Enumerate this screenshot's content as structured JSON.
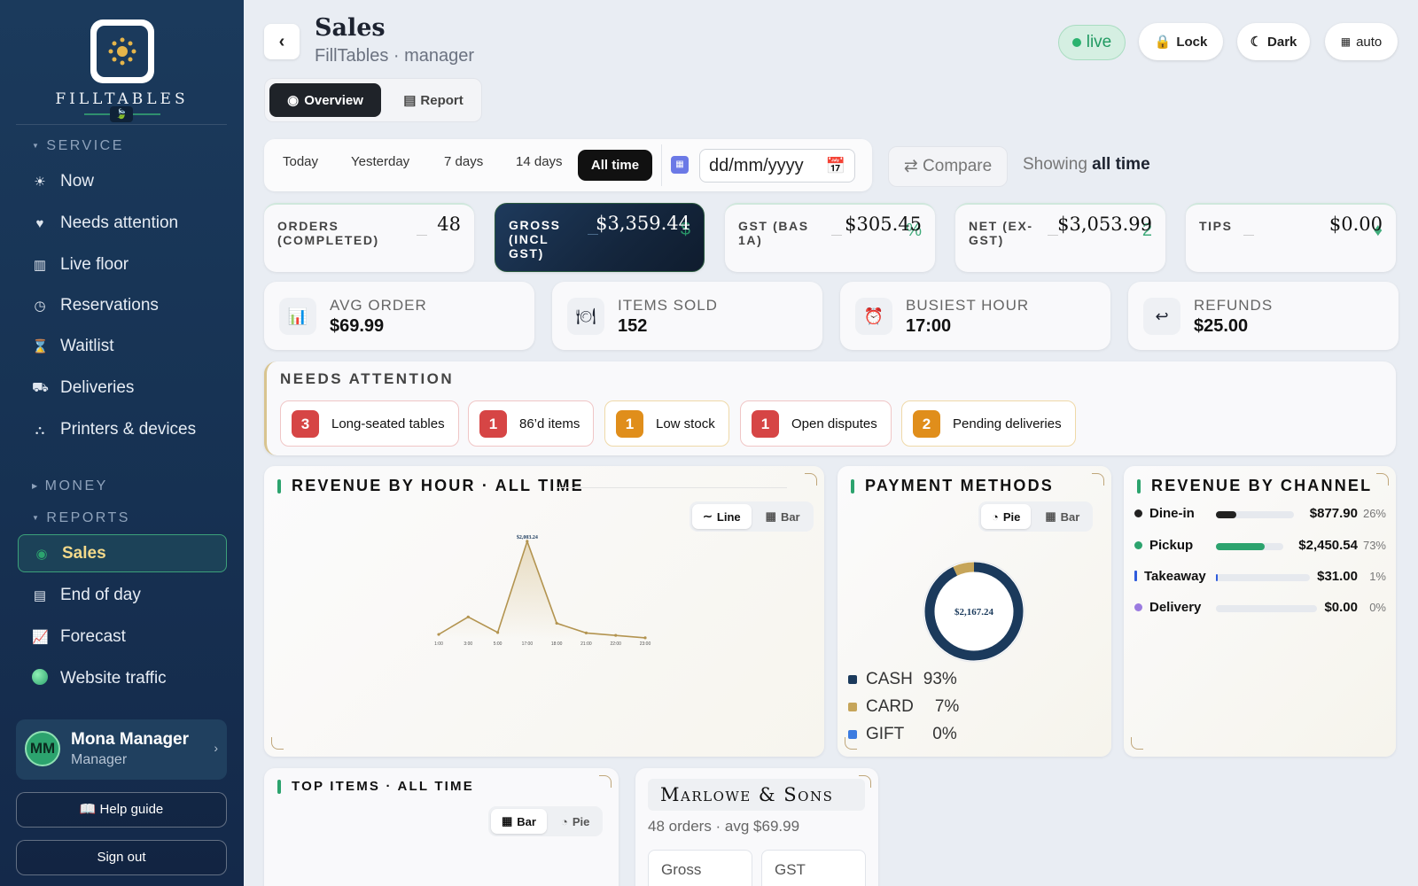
{
  "sidebar": {
    "brand": "FILLTABLES",
    "brand_badge": "🍃",
    "sections": {
      "service": "SERVICE",
      "money": "MONEY",
      "reports": "REPORTS"
    },
    "service_items": [
      {
        "label": "Now",
        "icon": "sun-icon"
      },
      {
        "label": "Needs attention",
        "icon": "heart-icon"
      },
      {
        "label": "Live floor",
        "icon": "floor-grid-icon"
      },
      {
        "label": "Reservations",
        "icon": "clock-icon"
      },
      {
        "label": "Waitlist",
        "icon": "hourglass-icon"
      },
      {
        "label": "Deliveries",
        "icon": "truck-icon"
      },
      {
        "label": "Printers & devices",
        "icon": "network-icon"
      }
    ],
    "report_items": [
      {
        "label": "Sales",
        "icon": "dot-icon",
        "active": true
      },
      {
        "label": "End of day",
        "icon": "list-icon"
      },
      {
        "label": "Forecast",
        "icon": "chart-up-icon"
      },
      {
        "label": "Website traffic",
        "icon": "globe-icon"
      }
    ],
    "user": {
      "initials": "MM",
      "name": "Mona Manager",
      "role": "Manager"
    },
    "help_label": "📖 Help guide",
    "signout_label": "Sign out"
  },
  "header": {
    "title": "Sales",
    "subtitle": "FillTables · manager",
    "back": "‹",
    "live_label": "live",
    "lock_label": "Lock",
    "dark_label": "Dark",
    "auto_label": "auto",
    "tabs": {
      "overview": "Overview",
      "report": "Report"
    }
  },
  "range": {
    "options": [
      "Today",
      "Yesterday",
      "7 days",
      "14 days"
    ],
    "active": "All time",
    "date_placeholder": "dd/mm/yyyy",
    "compare_label": "⇄ Compare",
    "showing_prefix": "Showing",
    "showing_value": "all time"
  },
  "kpis": [
    {
      "label": "ORDERS (COMPLETED)",
      "value": "48"
    },
    {
      "label": "GROSS (INCL GST)",
      "value": "$3,359.44",
      "glyph": "$"
    },
    {
      "label": "GST (BAS 1A)",
      "value": "$305.45",
      "glyph": "%"
    },
    {
      "label": "NET (EX-GST)",
      "value": "$3,053.99",
      "glyph": "2"
    },
    {
      "label": "TIPS",
      "value": "$0.00",
      "glyph": "♦"
    }
  ],
  "minis": [
    {
      "label": "AVG ORDER",
      "value": "$69.99",
      "icon": "bar-chart-icon",
      "glyph": "📊"
    },
    {
      "label": "ITEMS SOLD",
      "value": "152",
      "icon": "plate-icon",
      "glyph": "🍽"
    },
    {
      "label": "BUSIEST HOUR",
      "value": "17:00",
      "icon": "alarm-clock-icon",
      "glyph": "⏰"
    },
    {
      "label": "REFUNDS",
      "value": "$25.00",
      "icon": "return-arrow-icon",
      "glyph": "↩"
    }
  ],
  "attention": {
    "title": "NEEDS ATTENTION",
    "chips": [
      {
        "count": "3",
        "label": "Long-seated tables",
        "tone": "red"
      },
      {
        "count": "1",
        "label": "86’d items",
        "tone": "red"
      },
      {
        "count": "1",
        "label": "Low stock",
        "tone": "amber"
      },
      {
        "count": "1",
        "label": "Open disputes",
        "tone": "red"
      },
      {
        "count": "2",
        "label": "Pending deliveries",
        "tone": "amber"
      }
    ]
  },
  "revenue_by_hour": {
    "title": "REVENUE BY HOUR · ALL TIME",
    "toggle": {
      "line": "Line",
      "bar": "Bar"
    },
    "peak_label": "$2,003.24"
  },
  "payment_methods": {
    "title": "PAYMENT METHODS",
    "toggle": {
      "pie": "Pie",
      "bar": "Bar"
    },
    "center_label": "$2,167.24",
    "legend": [
      {
        "name": "CASH",
        "pct": "93%",
        "color": "#1b3a5c"
      },
      {
        "name": "CARD",
        "pct": "7%",
        "color": "#c6a55a"
      },
      {
        "name": "GIFT",
        "pct": "0%",
        "color": "#3b7be0"
      }
    ]
  },
  "revenue_by_channel": {
    "title": "REVENUE BY CHANNEL",
    "rows": [
      {
        "name": "Dine-in",
        "amount": "$877.90",
        "pct": "26%",
        "fraction": 0.26,
        "color": "#222222"
      },
      {
        "name": "Pickup",
        "amount": "$2,450.54",
        "pct": "73%",
        "fraction": 0.73,
        "color": "#2ca36e"
      },
      {
        "name": "Takeaway",
        "amount": "$31.00",
        "pct": "1%",
        "fraction": 0.01,
        "color": "#2e5bdc"
      },
      {
        "name": "Delivery",
        "amount": "$0.00",
        "pct": "0%",
        "fraction": 0.0,
        "color": "#9b7be0"
      }
    ]
  },
  "top_items": {
    "title": "TOP ITEMS · ALL TIME",
    "toggle": {
      "bar": "Bar",
      "pie": "Pie"
    }
  },
  "merchant": {
    "name": "Marlowe & Sons",
    "summary": "48 orders · avg $69.99",
    "boxes": [
      "Gross",
      "GST"
    ]
  },
  "chart_data": [
    {
      "type": "line",
      "title": "REVENUE BY HOUR · ALL TIME",
      "x": [
        "1:00",
        "3:00",
        "5:00",
        "17:00",
        "18:00",
        "21:00",
        "22:00",
        "23:00"
      ],
      "values": [
        90,
        450,
        130,
        2003.24,
        320,
        120,
        70,
        20
      ],
      "data_labels": [
        "$2,003.24"
      ]
    },
    {
      "type": "pie",
      "title": "PAYMENT METHODS",
      "categories": [
        "CASH",
        "CARD",
        "GIFT"
      ],
      "values": [
        93,
        7,
        0
      ]
    },
    {
      "type": "bar",
      "title": "REVENUE BY CHANNEL",
      "categories": [
        "Dine-in",
        "Pickup",
        "Takeaway",
        "Delivery"
      ],
      "values": [
        877.9,
        2450.54,
        31.0,
        0.0
      ]
    }
  ]
}
